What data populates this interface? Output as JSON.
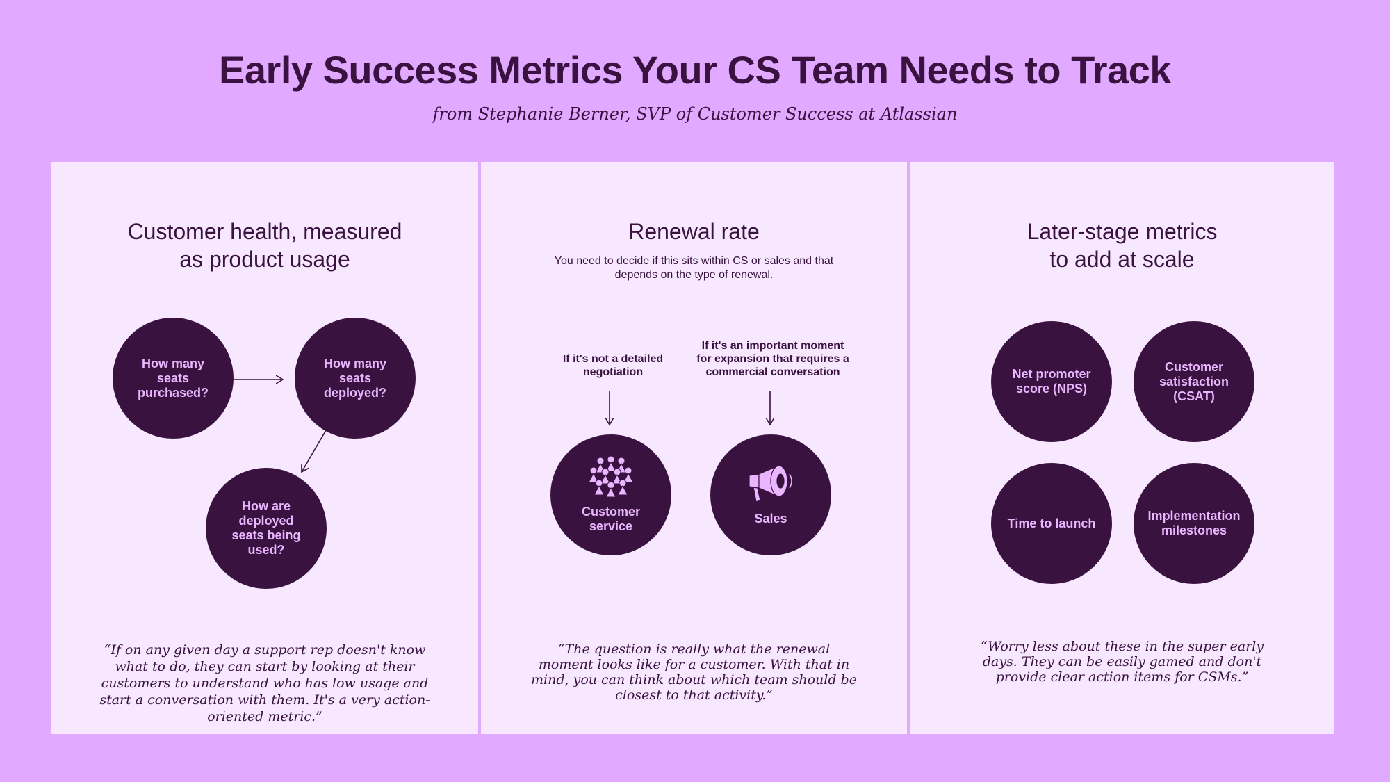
{
  "header": {
    "title": "Early Success Metrics Your CS Team Needs to Track",
    "subtitle": "from Stephanie Berner, SVP of Customer Success at Atlassian"
  },
  "colors": {
    "background": "#e1a9ff",
    "panel": "#f7e8ff",
    "circle": "#3a1240",
    "circle_text": "#e9b6ff",
    "text": "#3a1240"
  },
  "panel1": {
    "heading_line1": "Customer health, measured",
    "heading_line2": "as product usage",
    "circles": [
      "How many seats purchased?",
      "How many seats deployed?",
      "How are deployed seats being used?"
    ],
    "quote": "“If on any given day a support rep doesn't know what to do, they can start by looking at their customers to understand who has low usage and start a conversation with them. It's a very action-oriented metric.”"
  },
  "panel2": {
    "heading": "Renewal rate",
    "description": "You need to decide if this sits within CS or sales and that depends on the type of renewal.",
    "left_annotation": "If it's not a detailed negotiation",
    "right_annotation": "If it's an important moment for expansion that requires a commercial conversation",
    "left_circle": {
      "label": "Customer service",
      "icon": "people-group-icon"
    },
    "right_circle": {
      "label": "Sales",
      "icon": "megaphone-icon"
    },
    "quote": "“The question is really what the renewal moment looks like for a customer. With that in mind, you can think about which team should be closest to that activity.”"
  },
  "panel3": {
    "heading_line1": "Later-stage metrics",
    "heading_line2": "to add at scale",
    "circles": [
      "Net promoter score (NPS)",
      "Customer satisfaction (CSAT)",
      "Time to launch",
      "Implementation milestones"
    ],
    "quote": "“Worry less about these in the super early days. They can be easily gamed and don't provide clear action items for CSMs.”"
  }
}
